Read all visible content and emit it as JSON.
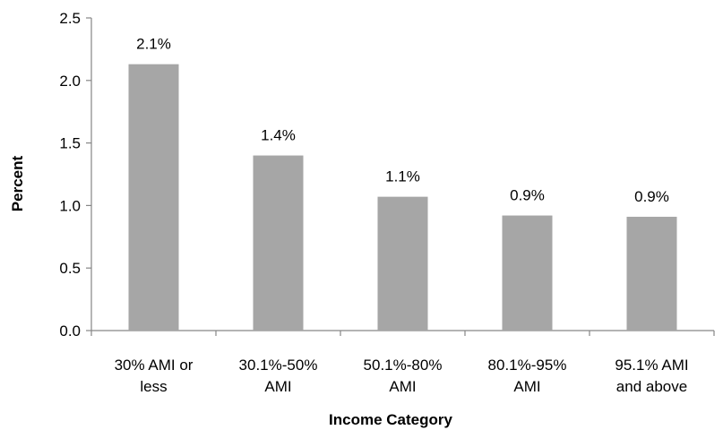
{
  "chart_data": {
    "type": "bar",
    "categories": [
      [
        "30% AMI or",
        "less"
      ],
      [
        "30.1%-50%",
        "AMI"
      ],
      [
        "50.1%-80%",
        "AMI"
      ],
      [
        "80.1%-95%",
        "AMI"
      ],
      [
        "95.1% AMI",
        "and above"
      ]
    ],
    "values": [
      2.13,
      1.4,
      1.07,
      0.92,
      0.91
    ],
    "data_labels": [
      "2.1%",
      "1.4%",
      "1.1%",
      "0.9%",
      "0.9%"
    ],
    "title": "",
    "xlabel": "Income Category",
    "ylabel": "Percent",
    "ylim": [
      0,
      2.5
    ],
    "yticks": [
      "0.0",
      "0.5",
      "1.0",
      "1.5",
      "2.0",
      "2.5"
    ],
    "grid": false,
    "legend": "none",
    "colors": {
      "bar": "#a6a6a6",
      "axis": "#868686",
      "text": "#000000"
    }
  }
}
